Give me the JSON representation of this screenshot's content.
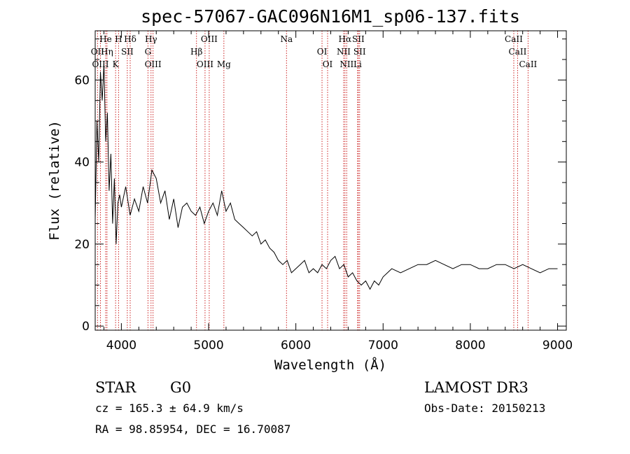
{
  "chart_data": {
    "type": "line",
    "title": "spec-57067-GAC096N16M1_sp06-137.fits",
    "xlabel": "Wavelength (Å)",
    "ylabel": "Flux (relative)",
    "xlim": [
      3700,
      9100
    ],
    "ylim": [
      -1,
      72
    ],
    "x_ticks": [
      4000,
      5000,
      6000,
      7000,
      8000,
      9000
    ],
    "y_ticks": [
      0,
      20,
      40,
      60
    ],
    "x_tick_labels": [
      "4000",
      "5000",
      "6000",
      "7000",
      "8000",
      "9000"
    ],
    "y_tick_labels": [
      "0",
      "20",
      "40",
      "60"
    ],
    "series": [
      {
        "name": "spectrum",
        "x": [
          3700,
          3720,
          3740,
          3760,
          3780,
          3800,
          3820,
          3840,
          3860,
          3880,
          3900,
          3920,
          3940,
          3960,
          3980,
          4000,
          4050,
          4100,
          4150,
          4200,
          4250,
          4300,
          4350,
          4400,
          4450,
          4500,
          4550,
          4600,
          4650,
          4700,
          4750,
          4800,
          4850,
          4900,
          4950,
          5000,
          5050,
          5100,
          5150,
          5200,
          5250,
          5300,
          5350,
          5400,
          5450,
          5500,
          5550,
          5600,
          5650,
          5700,
          5750,
          5800,
          5850,
          5900,
          5950,
          6000,
          6050,
          6100,
          6150,
          6200,
          6250,
          6300,
          6350,
          6400,
          6450,
          6500,
          6550,
          6600,
          6650,
          6700,
          6750,
          6800,
          6850,
          6900,
          6950,
          7000,
          7100,
          7200,
          7300,
          7400,
          7500,
          7600,
          7700,
          7800,
          7900,
          8000,
          8100,
          8200,
          8300,
          8400,
          8500,
          8600,
          8700,
          8800,
          8900,
          9000
        ],
        "y": [
          26,
          50,
          40,
          62,
          55,
          64,
          45,
          52,
          33,
          42,
          25,
          36,
          20,
          30,
          32,
          29,
          34,
          27,
          31,
          28,
          34,
          30,
          38,
          36,
          30,
          33,
          26,
          31,
          24,
          29,
          30,
          28,
          27,
          29,
          25,
          28,
          30,
          27,
          33,
          28,
          30,
          26,
          25,
          24,
          23,
          22,
          23,
          20,
          21,
          19,
          18,
          16,
          15,
          16,
          13,
          14,
          15,
          16,
          13,
          14,
          13,
          15,
          14,
          16,
          17,
          14,
          15,
          12,
          13,
          11,
          10,
          11,
          9,
          11,
          10,
          12,
          14,
          13,
          14,
          15,
          15,
          16,
          15,
          14,
          15,
          15,
          14,
          14,
          15,
          15,
          14,
          15,
          14,
          13,
          14,
          14
        ]
      }
    ],
    "spectral_lines": [
      {
        "label": "Hδ",
        "x": 4101
      },
      {
        "label": "OII",
        "x": 3727
      },
      {
        "label": "OIII",
        "x": 3760
      },
      {
        "label": "He",
        "x": 3820
      },
      {
        "label": "Hη",
        "x": 3835
      },
      {
        "label": "K",
        "x": 3934
      },
      {
        "label": "H",
        "x": 3968
      },
      {
        "label": "SII",
        "x": 4068
      },
      {
        "label": "OIII",
        "x": 4363
      },
      {
        "label": "Hγ",
        "x": 4340
      },
      {
        "label": "G",
        "x": 4305
      },
      {
        "label": "OIII",
        "x": 4959
      },
      {
        "label": "OIII",
        "x": 5007
      },
      {
        "label": "Hβ",
        "x": 4861
      },
      {
        "label": "Mg",
        "x": 5175
      },
      {
        "label": "Na",
        "x": 5893
      },
      {
        "label": "OI",
        "x": 6300
      },
      {
        "label": "OI",
        "x": 6364
      },
      {
        "label": "Hα",
        "x": 6563
      },
      {
        "label": "NII",
        "x": 6548
      },
      {
        "label": "NII",
        "x": 6583
      },
      {
        "label": "SII",
        "x": 6716
      },
      {
        "label": "SII",
        "x": 6731
      },
      {
        "label": "Li",
        "x": 6708
      },
      {
        "label": "CaII",
        "x": 8498
      },
      {
        "label": "CaII",
        "x": 8542
      },
      {
        "label": "CaII",
        "x": 8662
      }
    ]
  },
  "info": {
    "class_label": "STAR",
    "subclass": "G0",
    "survey": "LAMOST DR3",
    "cz": "cz = 165.3 ± 64.9 km/s",
    "obs_date": "Obs-Date: 20150213",
    "coords": "RA =  98.85954, DEC =  16.70087"
  },
  "colors": {
    "line_markers": "#cc2222",
    "spectrum": "#000000",
    "axes": "#000000"
  }
}
